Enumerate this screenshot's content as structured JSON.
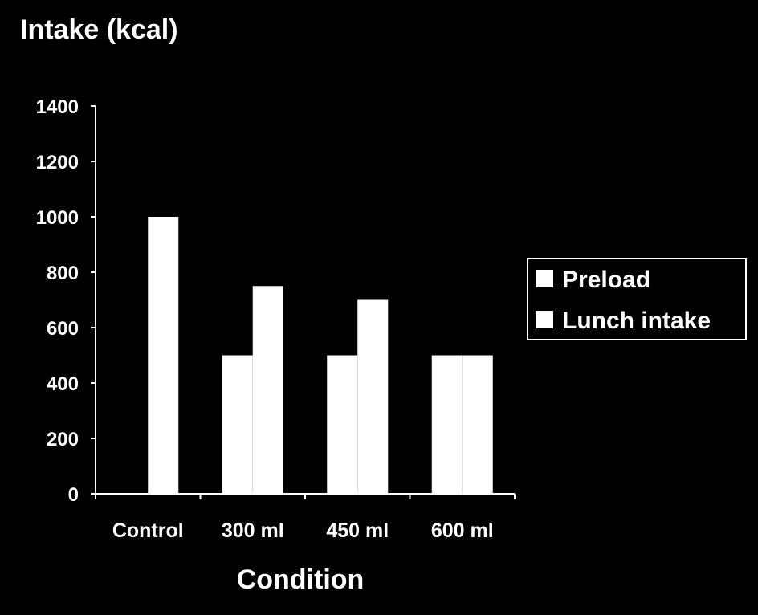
{
  "chart_data": {
    "type": "bar",
    "ylabel": "Intake (kcal)",
    "xlabel": "Condition",
    "categories": [
      "Control",
      "300 ml",
      "450 ml",
      "600 ml"
    ],
    "series": [
      {
        "name": "Preload",
        "values": [
          0,
          500,
          500,
          500
        ]
      },
      {
        "name": "Lunch intake",
        "values": [
          1000,
          750,
          700,
          500
        ]
      }
    ],
    "ylim": [
      0,
      1400
    ],
    "yticks": [
      "0",
      "200",
      "400",
      "600",
      "800",
      "1000",
      "1200",
      "1400"
    ],
    "grid": false,
    "legend_position": "right",
    "colors": {
      "background": "#000000",
      "foreground": "#ffffff",
      "bars": "#ffffff"
    }
  }
}
